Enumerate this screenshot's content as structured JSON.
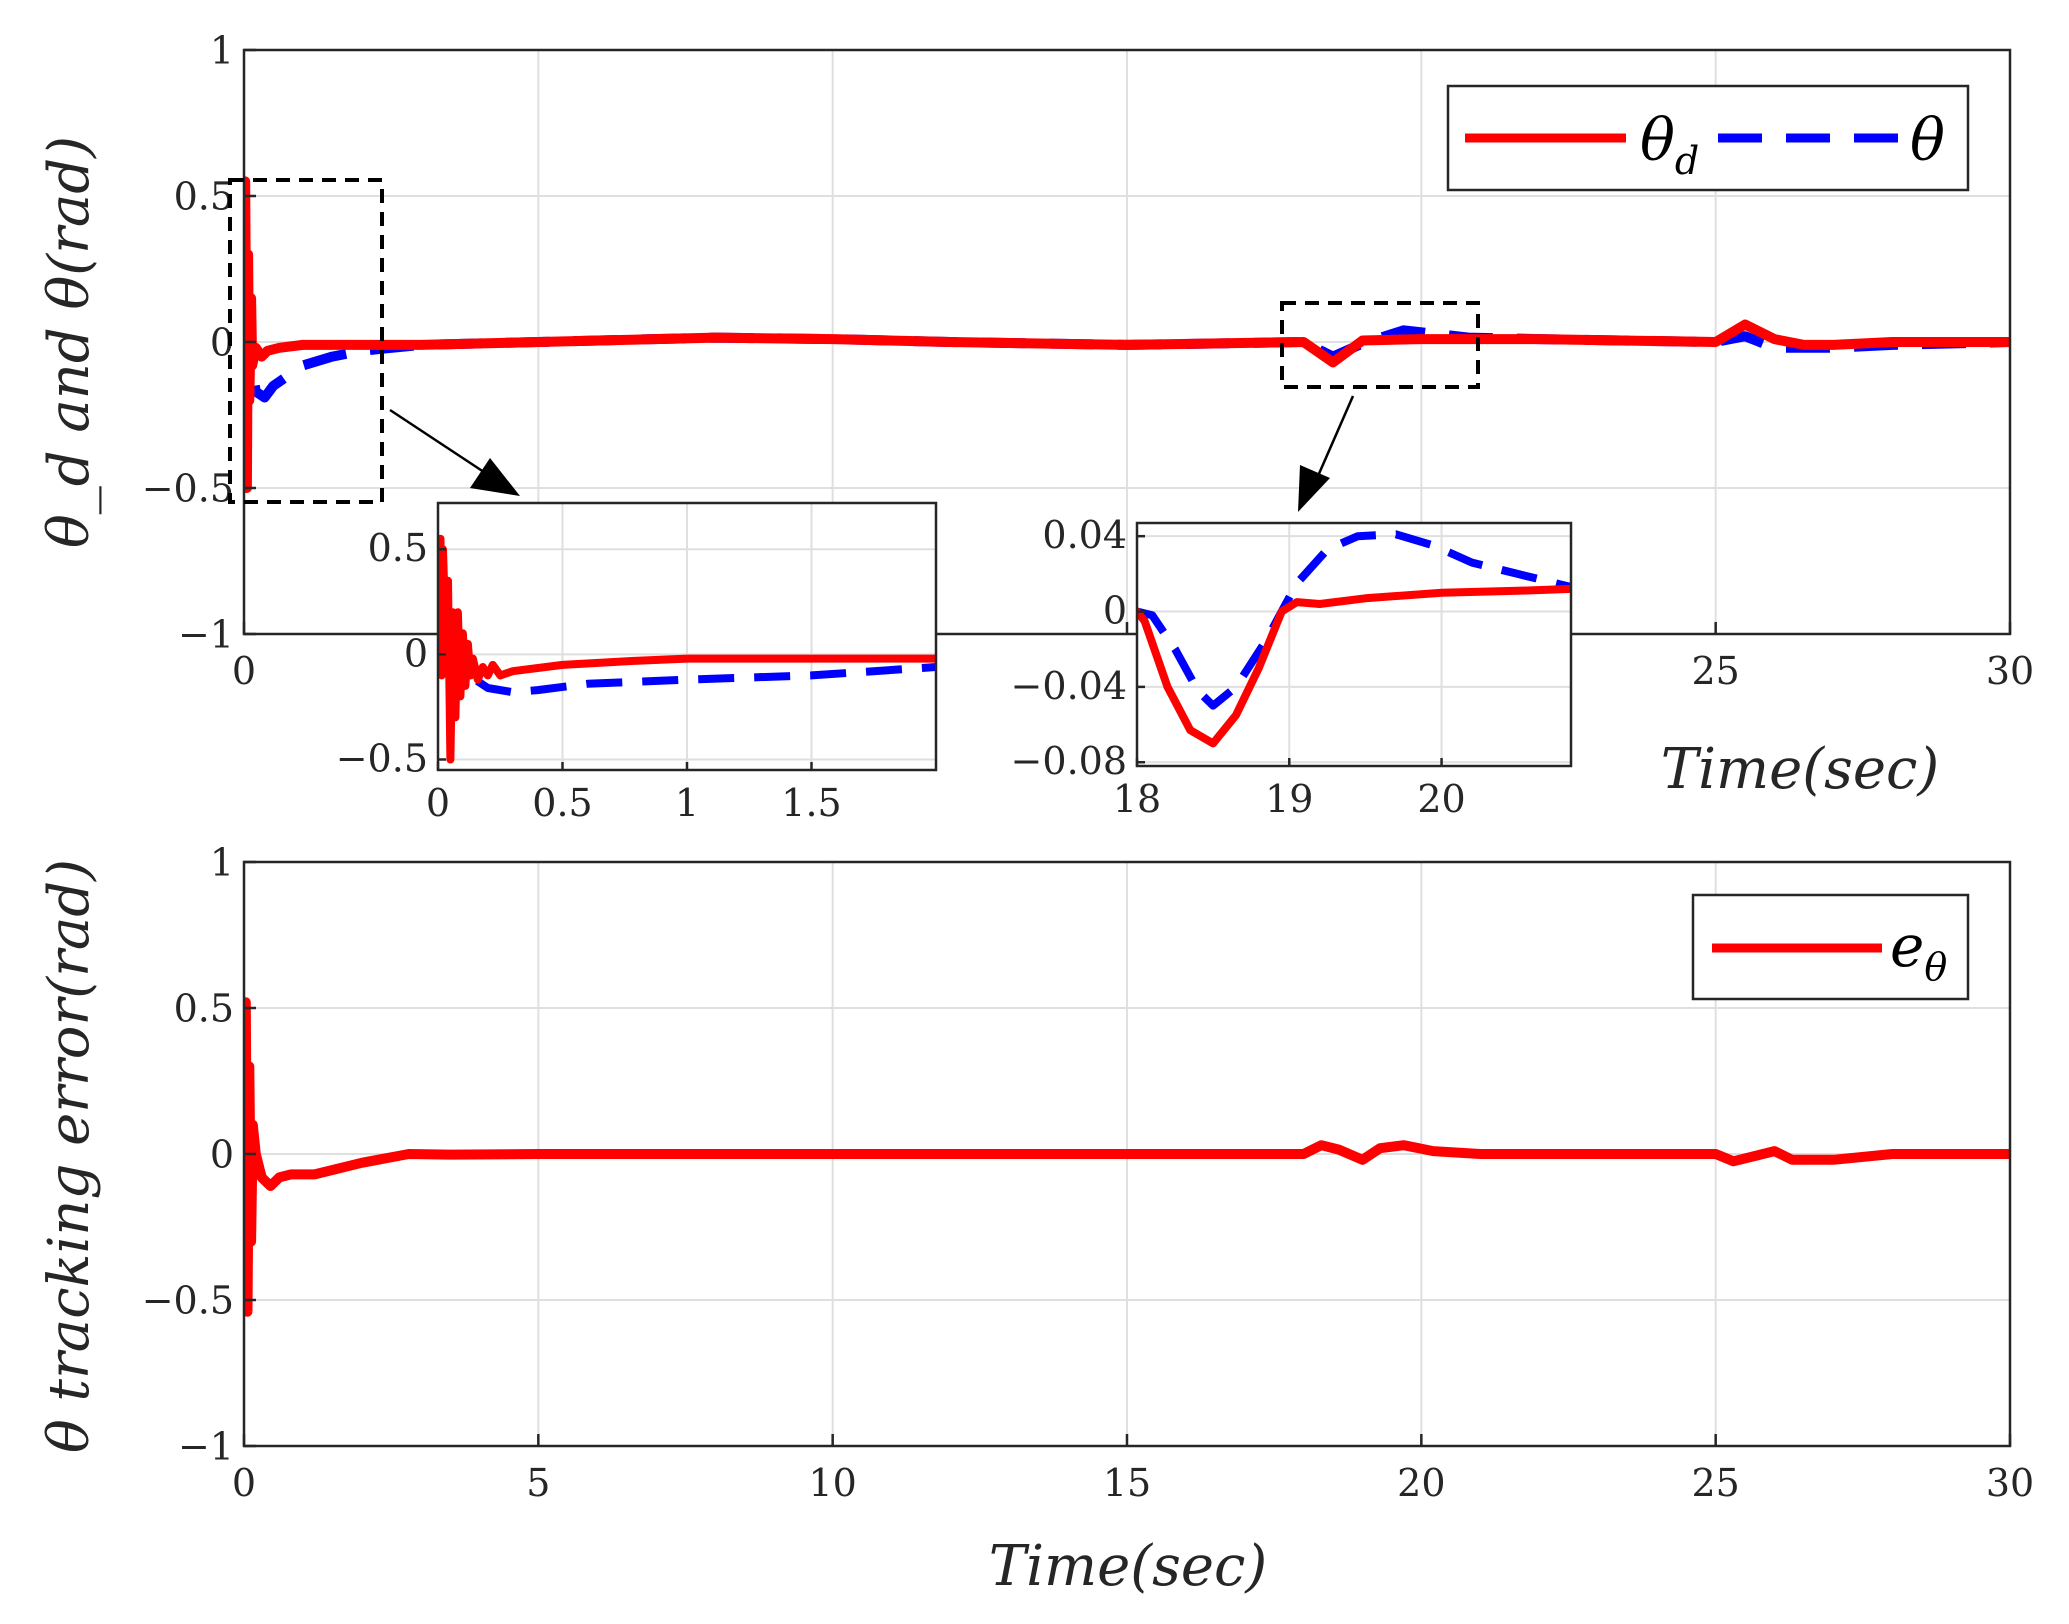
{
  "colors": {
    "desired": "#ff0000",
    "actual": "#0000ff",
    "error": "#ff0000"
  },
  "chart_data": [
    {
      "id": "top",
      "type": "line",
      "xlabel": "Time(sec)",
      "ylabel": "θ_d and θ(rad)",
      "xlim": [
        0,
        30
      ],
      "ylim": [
        -1,
        1
      ],
      "xticks": [
        0,
        5,
        10,
        15,
        20,
        25,
        30
      ],
      "xtick_labels": [
        "0",
        "",
        "",
        "",
        "",
        "25",
        "30"
      ],
      "yticks": [
        -1,
        -0.5,
        0,
        0.5,
        1
      ],
      "ytick_labels": [
        "−1",
        "−0.5",
        "0",
        "0.5",
        "1"
      ],
      "grid": true,
      "legend": {
        "placement": "top-right",
        "entries": [
          {
            "symbol": "θ",
            "sub": "d",
            "series": "theta_d",
            "style": "solid"
          },
          {
            "symbol": "θ",
            "sub": "",
            "series": "theta",
            "style": "dashed"
          }
        ]
      },
      "series": [
        {
          "name": "theta_d",
          "style": "solid",
          "color": "#ff0000",
          "x": [
            0,
            0.02,
            0.05,
            0.07,
            0.09,
            0.12,
            0.14,
            0.16,
            0.2,
            0.3,
            0.4,
            0.6,
            1,
            1.5,
            2,
            3,
            5,
            8,
            10,
            12,
            15,
            18,
            18.5,
            19,
            20,
            22,
            25,
            25.5,
            26,
            26.5,
            27,
            28,
            30
          ],
          "y": [
            0,
            0.55,
            -0.5,
            0.3,
            -0.2,
            0.15,
            -0.08,
            -0.06,
            -0.02,
            -0.05,
            -0.03,
            -0.02,
            -0.01,
            -0.01,
            -0.01,
            -0.01,
            0,
            0.015,
            0.01,
            0,
            -0.01,
            0,
            -0.07,
            0.005,
            0.01,
            0.01,
            0,
            0.06,
            0.01,
            -0.01,
            -0.01,
            0,
            0
          ]
        },
        {
          "name": "theta",
          "style": "dashed",
          "color": "#0000ff",
          "x": [
            0,
            0.05,
            0.1,
            0.2,
            0.35,
            0.5,
            1,
            1.5,
            2,
            3,
            5,
            8,
            10,
            12,
            15,
            18,
            18.5,
            19,
            19.7,
            20.8,
            22,
            25,
            25.5,
            26,
            27,
            28,
            30
          ],
          "y": [
            0,
            0.04,
            -0.05,
            -0.17,
            -0.19,
            -0.15,
            -0.08,
            -0.05,
            -0.03,
            -0.01,
            0,
            0.015,
            0.01,
            0,
            -0.01,
            0,
            -0.05,
            -0.005,
            0.04,
            0.015,
            0.01,
            0,
            0.02,
            -0.02,
            -0.02,
            -0.01,
            0
          ]
        }
      ],
      "insets": [
        {
          "id": "inset1",
          "xlim": [
            0,
            2
          ],
          "ylim": [
            -0.55,
            0.72
          ],
          "xticks": [
            0,
            0.5,
            1,
            1.5
          ],
          "xtick_labels": [
            "0",
            "0.5",
            "1",
            "1.5"
          ],
          "yticks": [
            -0.5,
            0,
            0.5
          ],
          "ytick_labels": [
            "−0.5",
            "0",
            "0.5"
          ],
          "series": [
            {
              "name": "theta_d",
              "style": "solid",
              "x": [
                0,
                0.01,
                0.015,
                0.02,
                0.03,
                0.04,
                0.05,
                0.06,
                0.07,
                0.08,
                0.09,
                0.1,
                0.11,
                0.12,
                0.13,
                0.14,
                0.16,
                0.18,
                0.2,
                0.22,
                0.25,
                0.3,
                0.5,
                0.8,
                1,
                1.5,
                2
              ],
              "y": [
                0,
                0.55,
                -0.1,
                0.5,
                0.1,
                0.35,
                -0.5,
                0.2,
                -0.3,
                0.2,
                -0.2,
                0.1,
                -0.15,
                0.05,
                -0.1,
                -0.02,
                -0.12,
                -0.06,
                -0.1,
                -0.05,
                -0.1,
                -0.08,
                -0.05,
                -0.03,
                -0.02,
                -0.02,
                -0.02
              ]
            },
            {
              "name": "theta",
              "style": "dashed",
              "x": [
                0,
                0.03,
                0.06,
                0.1,
                0.15,
                0.2,
                0.3,
                0.4,
                0.6,
                0.8,
                1,
                1.5,
                2
              ],
              "y": [
                0,
                0.03,
                0.01,
                -0.05,
                -0.12,
                -0.16,
                -0.18,
                -0.17,
                -0.14,
                -0.13,
                -0.12,
                -0.1,
                -0.06
              ]
            }
          ]
        },
        {
          "id": "inset2",
          "xlim": [
            18,
            20.85
          ],
          "ylim": [
            -0.082,
            0.047
          ],
          "xticks": [
            18,
            19,
            20
          ],
          "xtick_labels": [
            "18",
            "19",
            "20"
          ],
          "yticks": [
            -0.08,
            -0.04,
            0,
            0.04
          ],
          "ytick_labels": [
            "−0.08",
            "−0.04",
            "0",
            "0.04"
          ],
          "series": [
            {
              "name": "theta_d",
              "style": "solid",
              "x": [
                18,
                18.05,
                18.2,
                18.35,
                18.5,
                18.65,
                18.8,
                18.95,
                19.05,
                19.2,
                19.5,
                20,
                20.5,
                20.85
              ],
              "y": [
                0,
                -0.005,
                -0.04,
                -0.063,
                -0.07,
                -0.055,
                -0.03,
                0,
                0.005,
                0.004,
                0.007,
                0.01,
                0.011,
                0.012
              ]
            },
            {
              "name": "theta",
              "style": "dashed",
              "x": [
                18,
                18.1,
                18.25,
                18.4,
                18.5,
                18.65,
                18.85,
                19.05,
                19.25,
                19.45,
                19.7,
                19.95,
                20.2,
                20.5,
                20.85
              ],
              "y": [
                0,
                -0.002,
                -0.02,
                -0.042,
                -0.05,
                -0.04,
                -0.015,
                0.015,
                0.033,
                0.04,
                0.041,
                0.035,
                0.026,
                0.02,
                0.013
              ]
            }
          ]
        }
      ]
    },
    {
      "id": "bottom",
      "type": "line",
      "xlabel": "Time(sec)",
      "ylabel": "θ tracking error(rad)",
      "xlim": [
        0,
        30
      ],
      "ylim": [
        -1,
        1
      ],
      "xticks": [
        0,
        5,
        10,
        15,
        20,
        25,
        30
      ],
      "xtick_labels": [
        "0",
        "5",
        "10",
        "15",
        "20",
        "25",
        "30"
      ],
      "yticks": [
        -1,
        -0.5,
        0,
        0.5,
        1
      ],
      "ytick_labels": [
        "−1",
        "−0.5",
        "0",
        "0.5",
        "1"
      ],
      "grid": true,
      "legend": {
        "placement": "top-right",
        "entries": [
          {
            "symbol": "e",
            "sub": "θ",
            "series": "e_theta",
            "style": "solid"
          }
        ]
      },
      "series": [
        {
          "name": "e_theta",
          "style": "solid",
          "color": "#ff0000",
          "x": [
            0,
            0.03,
            0.06,
            0.09,
            0.12,
            0.15,
            0.2,
            0.3,
            0.45,
            0.6,
            0.8,
            1.2,
            2,
            2.8,
            3.5,
            5,
            10,
            15,
            18,
            18.3,
            18.6,
            19,
            19.3,
            19.7,
            20.2,
            21,
            25,
            25.3,
            25.7,
            26,
            26.3,
            27,
            28,
            30
          ],
          "y": [
            0,
            0.52,
            -0.54,
            0.3,
            -0.3,
            0.1,
            0,
            -0.08,
            -0.11,
            -0.08,
            -0.07,
            -0.07,
            -0.03,
            0,
            -0.002,
            0,
            0,
            0,
            0,
            0.03,
            0.015,
            -0.02,
            0.02,
            0.03,
            0.01,
            0,
            0,
            -0.025,
            -0.005,
            0.01,
            -0.02,
            -0.02,
            0,
            0
          ]
        }
      ]
    }
  ]
}
